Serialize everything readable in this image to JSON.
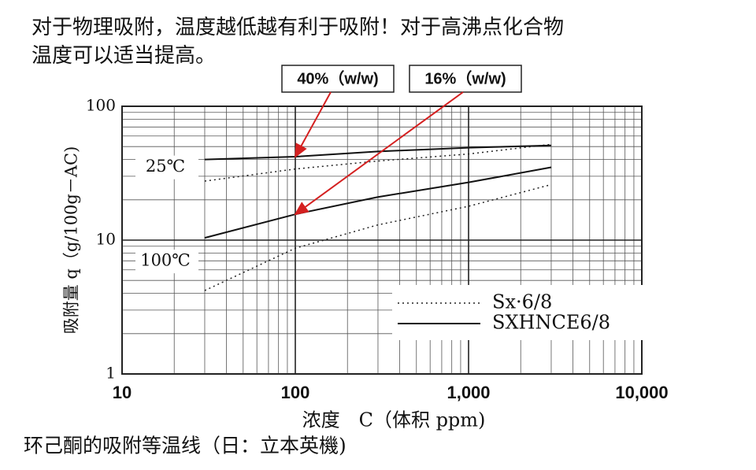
{
  "chart_data": {
    "type": "line",
    "header": [
      "对于物理吸附，温度越低越有利于吸附！对于高沸点化合物",
      "温度可以适当提高。"
    ],
    "caption": "环己酮的吸附等温线（日：立本英機)",
    "xlabel": "浓度　C（体积 ppm)",
    "ylabel": "吸附量 q（g/100g－AC)",
    "log_x": true,
    "log_y": true,
    "grid": true,
    "xlim": [
      10,
      10000
    ],
    "ylim": [
      1,
      100
    ],
    "xticks": [
      10,
      100,
      {
        "value": 1000,
        "label": "1,000"
      },
      {
        "value": 10000,
        "label": "10,000"
      }
    ],
    "yticks": [
      1,
      10,
      100
    ],
    "temperatures": [
      "25℃",
      "100℃"
    ],
    "x": [
      30,
      100,
      300,
      1000,
      3000
    ],
    "series": [
      {
        "name": "Sx·6/8",
        "color": "#222222",
        "dash": true,
        "values": [
          [
            27.6,
            34,
            39,
            44,
            52
          ],
          [
            4.2,
            8.7,
            13,
            17.9,
            26
          ]
        ]
      },
      {
        "name": "SXHNCE6/8",
        "color": "#111111",
        "dash": false,
        "values": [
          [
            40,
            42,
            46,
            49,
            51
          ],
          [
            10.4,
            15.6,
            21,
            27,
            35
          ]
        ]
      }
    ],
    "annotations": [
      "40%（w/w)",
      "16%（w/w)"
    ],
    "annotation_color": "#d42020"
  }
}
